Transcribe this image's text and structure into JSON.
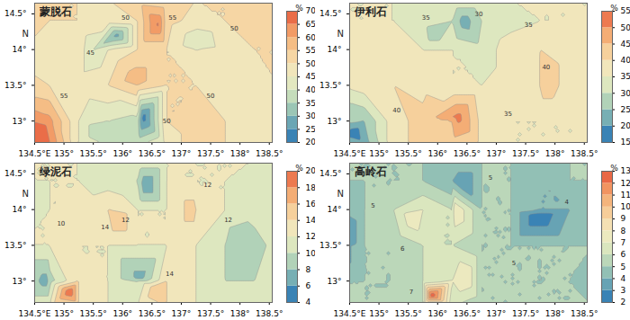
{
  "chart_data": [
    {
      "type": "contour",
      "title": "蒙脱石",
      "ylabel": "N",
      "xlim": [
        134.5,
        138.55
      ],
      "ylim": [
        12.7,
        14.65
      ],
      "xticks": [
        {
          "value": 134.5,
          "label": "134.5°E"
        },
        {
          "value": 135,
          "label": "135°"
        },
        {
          "value": 135.5,
          "label": "135.5°"
        },
        {
          "value": 136,
          "label": "136°"
        },
        {
          "value": 136.5,
          "label": "136.5°"
        },
        {
          "value": 137,
          "label": "137°"
        },
        {
          "value": 137.5,
          "label": "137.5°"
        },
        {
          "value": 138,
          "label": "138°"
        },
        {
          "value": 138.5,
          "label": "138.5°"
        }
      ],
      "yticks": [
        {
          "value": 13,
          "label": "13°"
        },
        {
          "value": 13.5,
          "label": "13.5°"
        },
        {
          "value": 14,
          "label": "14°"
        },
        {
          "value": 14.5,
          "label": "14.5°"
        }
      ],
      "lon": [
        134.3,
        134.75,
        135.25,
        135.75,
        136.25,
        136.75,
        137.25,
        137.75,
        138.25,
        138.65
      ],
      "lat": [
        12.65,
        13.0,
        13.5,
        14.0,
        14.4,
        14.7
      ],
      "values": [
        [
          68,
          66,
          45,
          40,
          40,
          48,
          52,
          50,
          50,
          50
        ],
        [
          66,
          62,
          45,
          40,
          38,
          50,
          52,
          50,
          48,
          50
        ],
        [
          52,
          50,
          48,
          50,
          55,
          50,
          50,
          48,
          48,
          50
        ],
        [
          50,
          46,
          48,
          45,
          50,
          50,
          45,
          48,
          50,
          50
        ],
        [
          52,
          50,
          50,
          48,
          50,
          52,
          48,
          50,
          52,
          50
        ],
        [
          50,
          50,
          50,
          50,
          52,
          50,
          50,
          50,
          52,
          50
        ]
      ],
      "spots": {
        "x": [
          134.6,
          136.35,
          135.9,
          136.6,
          135.6,
          135.5,
          136.2,
          137.3
        ],
        "y": [
          12.85,
          13.05,
          14.2,
          14.35,
          12.9,
          14.0,
          13.6,
          14.1
        ],
        "values": [
          70,
          22,
          28,
          66,
          35,
          40,
          58,
          40
        ]
      },
      "contour_labels": {
        "x": [
          135.0,
          135.45,
          136.05,
          136.85,
          137.5,
          137.9,
          136.75
        ],
        "y": [
          13.35,
          13.95,
          14.45,
          14.45,
          13.35,
          14.3,
          13.0
        ],
        "values": [
          55,
          45,
          50,
          55,
          50,
          50,
          50
        ]
      },
      "cbar": {
        "label": "%",
        "range": [
          20,
          70
        ],
        "ticks": [
          20,
          25,
          30,
          35,
          40,
          45,
          50,
          55,
          60,
          65,
          70
        ]
      }
    },
    {
      "type": "contour",
      "title": "伊利石",
      "ylabel": "N",
      "xlim": [
        134.5,
        138.55
      ],
      "ylim": [
        12.7,
        14.65
      ],
      "xticks": [
        {
          "value": 134.5,
          "label": "134.5°E"
        },
        {
          "value": 135,
          "label": "135°"
        },
        {
          "value": 135.5,
          "label": "135.5°"
        },
        {
          "value": 136,
          "label": "136°"
        },
        {
          "value": 136.5,
          "label": "136.5°"
        },
        {
          "value": 137,
          "label": "137°"
        },
        {
          "value": 137.5,
          "label": "137.5°"
        },
        {
          "value": 138,
          "label": "138°"
        },
        {
          "value": 138.5,
          "label": "138.5°"
        }
      ],
      "yticks": [
        {
          "value": 13,
          "label": "13°"
        },
        {
          "value": 13.5,
          "label": "13.5°"
        },
        {
          "value": 14,
          "label": "14°"
        },
        {
          "value": 14.5,
          "label": "14.5°"
        }
      ],
      "lon": [
        134.3,
        134.75,
        135.25,
        135.75,
        136.25,
        136.75,
        137.25,
        137.75,
        138.25,
        138.65
      ],
      "lat": [
        12.65,
        13.0,
        13.5,
        14.0,
        14.4,
        14.7
      ],
      "values": [
        [
          25,
          22,
          38,
          42,
          42,
          38,
          35,
          35,
          35,
          35
        ],
        [
          28,
          25,
          38,
          42,
          45,
          38,
          35,
          35,
          35,
          35
        ],
        [
          35,
          38,
          40,
          38,
          35,
          35,
          38,
          40,
          38,
          35
        ],
        [
          38,
          40,
          38,
          35,
          35,
          32,
          38,
          40,
          38,
          35
        ],
        [
          35,
          35,
          35,
          32,
          30,
          30,
          33,
          35,
          35,
          35
        ],
        [
          35,
          35,
          35,
          35,
          35,
          35,
          35,
          35,
          35,
          35
        ]
      ],
      "spots": {
        "x": [
          134.6,
          136.35,
          136.45,
          135.9,
          137.8,
          135.95
        ],
        "y": [
          12.85,
          13.05,
          14.4,
          14.2,
          13.5,
          13.05
        ],
        "values": [
          17,
          52,
          22,
          27,
          43,
          45
        ]
      },
      "contour_labels": {
        "x": [
          135.3,
          135.8,
          136.7,
          137.55,
          137.85,
          137.2
        ],
        "y": [
          13.15,
          14.45,
          14.5,
          14.35,
          13.75,
          13.1
        ],
        "values": [
          40,
          35,
          30,
          35,
          40,
          35
        ]
      },
      "cbar": {
        "label": "%",
        "range": [
          15,
          55
        ],
        "ticks": [
          15,
          20,
          25,
          30,
          35,
          40,
          45,
          50,
          55
        ]
      }
    },
    {
      "type": "contour",
      "title": "绿泥石",
      "ylabel": "N",
      "xlim": [
        134.5,
        138.55
      ],
      "ylim": [
        12.7,
        14.65
      ],
      "xticks": [
        {
          "value": 134.5,
          "label": "134.5°E"
        },
        {
          "value": 135,
          "label": "135°"
        },
        {
          "value": 135.5,
          "label": "135.5°"
        },
        {
          "value": 136,
          "label": "136°"
        },
        {
          "value": 136.5,
          "label": "136.5°"
        },
        {
          "value": 137,
          "label": "137°"
        },
        {
          "value": 137.5,
          "label": "137.5°"
        },
        {
          "value": 138,
          "label": "138°"
        },
        {
          "value": 138.5,
          "label": "138.5°"
        }
      ],
      "yticks": [
        {
          "value": 13,
          "label": "13°"
        },
        {
          "value": 13.5,
          "label": "13.5°"
        },
        {
          "value": 14,
          "label": "14°"
        },
        {
          "value": 14.5,
          "label": "14.5°"
        }
      ],
      "lon": [
        134.3,
        134.75,
        135.25,
        135.75,
        136.25,
        136.75,
        137.25,
        137.75,
        138.25,
        138.65
      ],
      "lat": [
        12.65,
        13.0,
        13.5,
        14.0,
        14.4,
        14.7
      ],
      "values": [
        [
          12,
          12,
          14,
          12,
          12,
          14,
          12,
          12,
          12,
          12
        ],
        [
          10,
          9,
          14,
          12,
          10,
          14,
          12,
          10,
          10,
          12
        ],
        [
          12,
          12,
          12,
          12,
          12,
          12,
          12,
          10,
          9,
          11
        ],
        [
          11,
          12,
          13,
          14,
          12,
          12,
          14,
          12,
          11,
          11
        ],
        [
          12,
          12,
          12,
          11,
          10,
          12,
          12,
          12,
          11,
          11
        ],
        [
          12,
          12,
          12,
          12,
          12,
          12,
          12,
          12,
          12,
          12
        ]
      ],
      "spots": {
        "x": [
          135.1,
          135.9,
          136.4,
          134.7,
          136.3,
          137.2,
          136.6,
          137.9
        ],
        "y": [
          12.85,
          13.9,
          14.35,
          13.0,
          13.05,
          14.0,
          12.9,
          13.5
        ],
        "values": [
          20,
          16,
          6,
          7,
          7,
          15,
          16,
          8
        ]
      },
      "contour_labels": {
        "x": [
          134.95,
          135.7,
          136.05,
          137.45,
          137.8,
          136.8
        ],
        "y": [
          13.8,
          13.75,
          13.85,
          14.35,
          13.85,
          13.1
        ],
        "values": [
          10,
          14,
          12,
          12,
          12,
          14
        ]
      },
      "cbar": {
        "label": "%",
        "range": [
          4,
          20
        ],
        "ticks": [
          4,
          6,
          8,
          10,
          12,
          14,
          16,
          18,
          20
        ]
      }
    },
    {
      "type": "contour",
      "title": "高岭石",
      "ylabel": "N",
      "xlim": [
        134.5,
        138.55
      ],
      "ylim": [
        12.7,
        14.65
      ],
      "xticks": [
        {
          "value": 134.5,
          "label": "134.5°E"
        },
        {
          "value": 135,
          "label": "135°"
        },
        {
          "value": 135.5,
          "label": "135.5°"
        },
        {
          "value": 136,
          "label": "136°"
        },
        {
          "value": 136.5,
          "label": "136.5°"
        },
        {
          "value": 137,
          "label": "137°"
        },
        {
          "value": 137.5,
          "label": "137.5°"
        },
        {
          "value": 138,
          "label": "138°"
        },
        {
          "value": 138.5,
          "label": "138.5°"
        }
      ],
      "yticks": [
        {
          "value": 13,
          "label": "13°"
        },
        {
          "value": 13.5,
          "label": "13.5°"
        },
        {
          "value": 14,
          "label": "14°"
        },
        {
          "value": 14.5,
          "label": "14.5°"
        }
      ],
      "lon": [
        134.3,
        134.75,
        135.25,
        135.75,
        136.25,
        136.75,
        137.25,
        137.75,
        138.25,
        138.65
      ],
      "lat": [
        12.65,
        13.0,
        13.5,
        14.0,
        14.4,
        14.7
      ],
      "values": [
        [
          5,
          5,
          5,
          6,
          6,
          5,
          5,
          5,
          5,
          5
        ],
        [
          5,
          5,
          5,
          6,
          7,
          5,
          5,
          5,
          5,
          4
        ],
        [
          3,
          5,
          5,
          6,
          6,
          5,
          5,
          5,
          5,
          5
        ],
        [
          4,
          5,
          6,
          7,
          6,
          5,
          5,
          4,
          4,
          5
        ],
        [
          5,
          5,
          5,
          5,
          4,
          5,
          5,
          4,
          5,
          5
        ],
        [
          5,
          5,
          5,
          5,
          5,
          5,
          5,
          5,
          5,
          5
        ]
      ],
      "spots": {
        "x": [
          135.9,
          137.7,
          136.45,
          135.6,
          136.3,
          134.35,
          136.5
        ],
        "y": [
          12.8,
          13.9,
          14.35,
          13.9,
          14.0,
          13.55,
          13.05
        ],
        "values": [
          13,
          2,
          3,
          8,
          8,
          2,
          8
        ]
      },
      "contour_labels": {
        "x": [
          134.9,
          135.4,
          136.9,
          137.3,
          138.2,
          135.55
        ],
        "y": [
          14.05,
          13.45,
          14.45,
          13.25,
          14.1,
          12.85
        ],
        "values": [
          5,
          6,
          5,
          5,
          4,
          7
        ]
      },
      "cbar": {
        "label": "%",
        "range": [
          2,
          13
        ],
        "ticks": [
          2,
          3,
          4,
          5,
          6,
          7,
          8,
          9,
          10,
          11,
          12,
          13
        ]
      }
    }
  ]
}
